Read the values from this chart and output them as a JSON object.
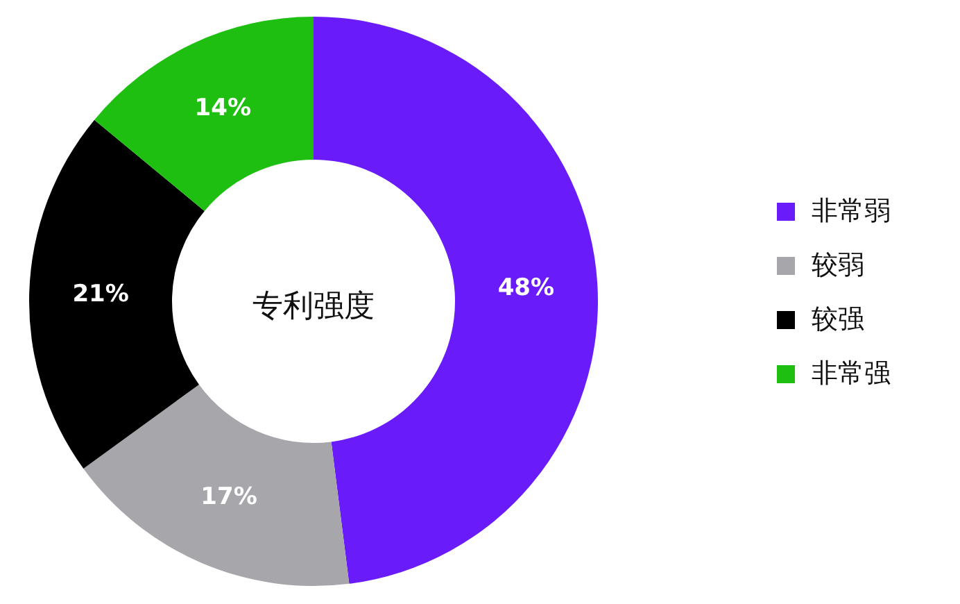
{
  "chart_data": {
    "type": "donut",
    "title": "专利强度",
    "categories": [
      "非常弱",
      "较弱",
      "较强",
      "非常强"
    ],
    "values": [
      48,
      17,
      21,
      14
    ],
    "colors": [
      "#6a1bfa",
      "#a7a6ab",
      "#000000",
      "#1fbf12"
    ],
    "value_labels": [
      "48%",
      "17%",
      "21%",
      "14%"
    ],
    "legend": "right"
  }
}
